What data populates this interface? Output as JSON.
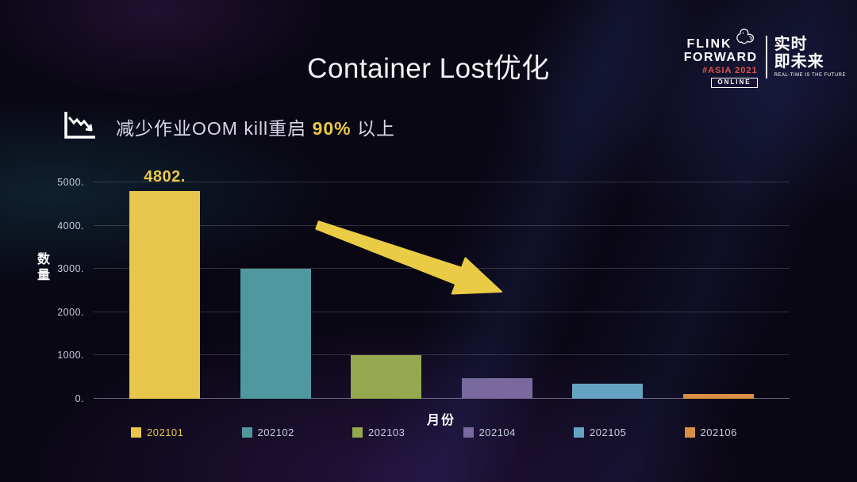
{
  "slide": {
    "title": "Container Lost优化"
  },
  "subtitle": {
    "before": "减少作业OOM kill重启 ",
    "highlight": "90%",
    "after": " 以上"
  },
  "logo": {
    "flink": "FLINK",
    "forward": "FORWARD",
    "asia": "#ASIA 2021",
    "online": "ONLINE",
    "cn_line1": "实时",
    "cn_line2": "即未来",
    "tagline": "REAL-TIME IS THE FUTURE"
  },
  "chart_data": {
    "type": "bar",
    "title": "",
    "categories": [
      "202101",
      "202102",
      "202103",
      "202104",
      "202105",
      "202106"
    ],
    "values": [
      4802,
      3000,
      1000,
      480,
      350,
      110
    ],
    "bar_colors": [
      "#e7c64b",
      "#4f989f",
      "#95a84d",
      "#79699e",
      "#65a3c2",
      "#d88f45"
    ],
    "data_labels": [
      "4802.",
      "",
      "",
      "",
      "",
      ""
    ],
    "xlabel": "月份",
    "ylabel": "数量",
    "ytick_labels": [
      "0.",
      "1000.",
      "2000.",
      "3000.",
      "4000.",
      "5000."
    ],
    "ylim": [
      0,
      5000
    ],
    "grid": true,
    "legend_position": "bottom",
    "highlighted_series": "202101",
    "annotation": "decreasing-trend-arrow"
  },
  "colors": {
    "accent_yellow": "#e8c74a",
    "arrow_yellow": "#e9cb45",
    "asia_red": "#e2544b",
    "background": "#0a0714",
    "tick_text": "#c6cadb"
  }
}
